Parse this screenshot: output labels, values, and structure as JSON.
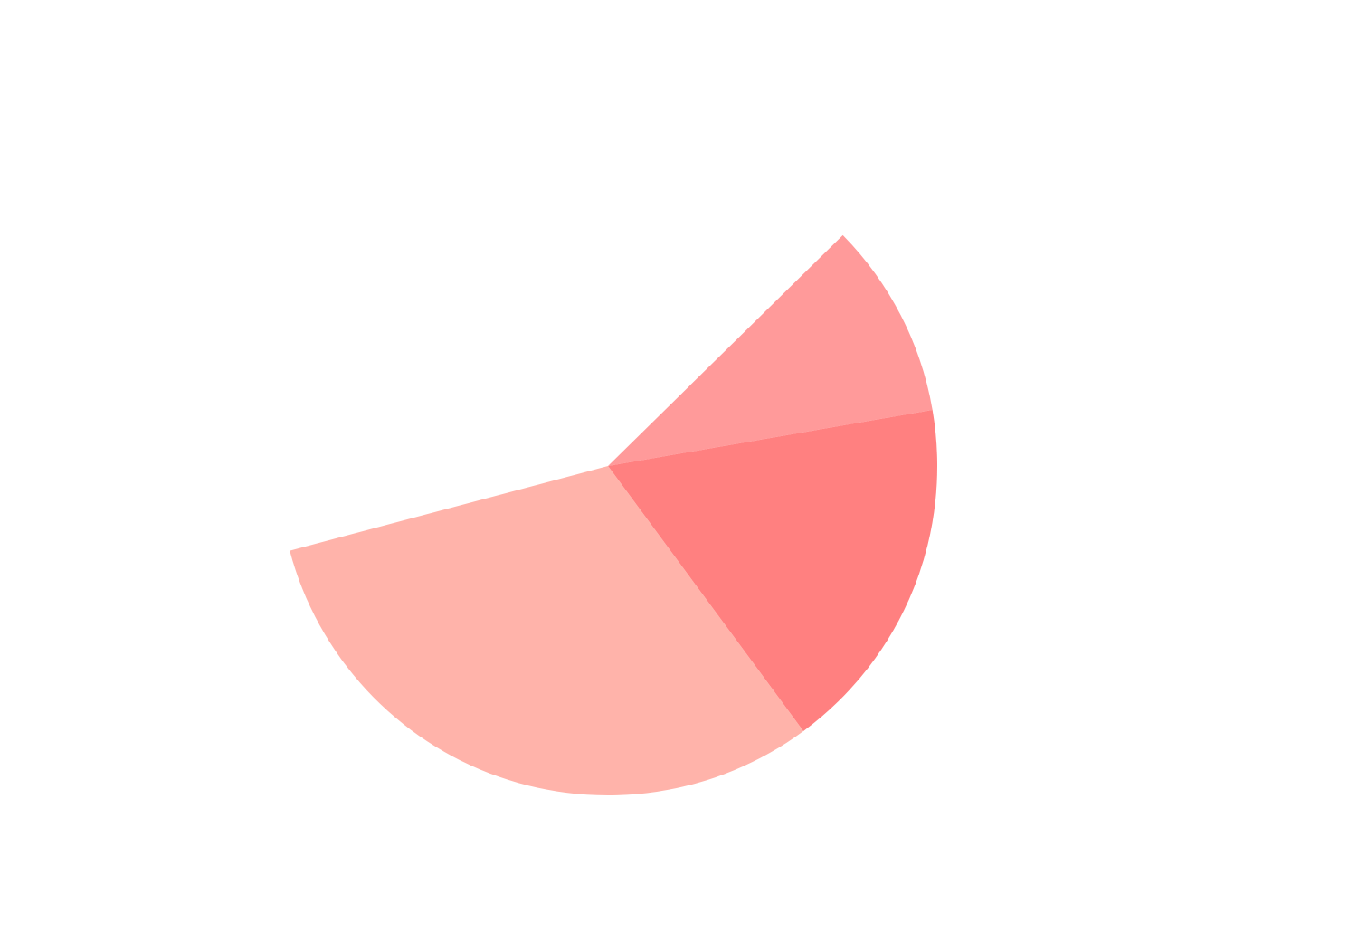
{
  "chart_data": {
    "type": "pie",
    "title": "",
    "slices": [
      {
        "value": 34.7,
        "color": "#FF9A9A"
      },
      {
        "value": 63.4,
        "color": "#FF8080"
      },
      {
        "value": 111.5,
        "color": "#FFB3AA"
      }
    ],
    "start_angle_deg": -44.5,
    "total_visible_deg": 209.6
  }
}
